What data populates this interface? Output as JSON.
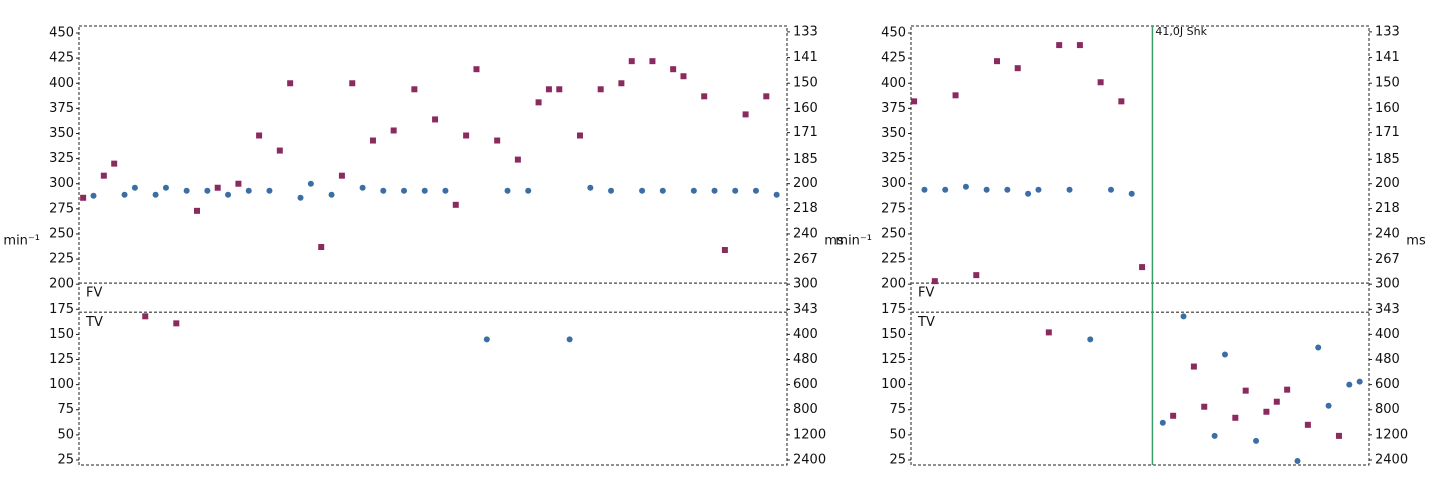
{
  "chart_data": [
    {
      "type": "scatter",
      "ylabel": "min⁻¹",
      "y2label": "ms",
      "y2scale": "reciprocal",
      "xlim": [
        -0.4,
        68.0
      ],
      "ylim": [
        20,
        457
      ],
      "y2lim": [
        131.3,
        3000
      ],
      "yticks": [
        25,
        50,
        75,
        100,
        125,
        150,
        175,
        200,
        225,
        250,
        275,
        300,
        325,
        350,
        375,
        400,
        425,
        450
      ],
      "y2ticks": [
        2400,
        1200,
        800,
        600,
        480,
        400,
        343,
        300,
        267,
        240,
        218,
        200,
        185,
        171,
        160,
        150,
        141,
        133
      ],
      "thresholds": [
        {
          "label": "FV",
          "value": 201
        },
        {
          "label": "TV",
          "value": 172
        }
      ],
      "series": [
        {
          "color": "#8b2a5e",
          "marker": "square",
          "x": [
            0,
            2,
            3,
            6,
            9,
            11,
            13,
            15,
            17,
            19,
            20,
            23,
            25,
            26,
            28,
            30,
            32,
            34,
            36,
            37,
            38,
            40,
            42,
            44,
            45,
            46,
            48,
            50,
            52,
            53,
            55,
            57,
            58,
            60,
            62,
            64,
            66
          ],
          "values": [
            286,
            308,
            320,
            168,
            161,
            273,
            296,
            300,
            348,
            333,
            400,
            237,
            308,
            400,
            343,
            353,
            394,
            364,
            279,
            348,
            414,
            343,
            324,
            381,
            394,
            394,
            348,
            394,
            400,
            422,
            422,
            414,
            407,
            387,
            234,
            369,
            387
          ]
        },
        {
          "color": "#3a6ea5",
          "marker": "circle",
          "x": [
            1,
            4,
            5,
            7,
            8,
            10,
            12,
            14,
            16,
            18,
            21,
            22,
            24,
            27,
            29,
            31,
            33,
            35,
            39,
            41,
            43,
            47,
            49,
            51,
            54,
            56,
            59,
            61,
            63,
            65,
            67
          ],
          "values": [
            288,
            289,
            296,
            289,
            296,
            293,
            293,
            289,
            293,
            293,
            286,
            300,
            289,
            296,
            293,
            293,
            293,
            293,
            145,
            293,
            293,
            145,
            296,
            293,
            293,
            293,
            293,
            293,
            293,
            293,
            289
          ]
        }
      ]
    },
    {
      "type": "scatter",
      "ylabel": "min⁻¹",
      "y2label": "ms",
      "y2scale": "reciprocal",
      "xlim": [
        -0.3,
        43.9
      ],
      "ylim": [
        20,
        457
      ],
      "y2lim": [
        131.3,
        3000
      ],
      "yticks": [
        25,
        50,
        75,
        100,
        125,
        150,
        175,
        200,
        225,
        250,
        275,
        300,
        325,
        350,
        375,
        400,
        425,
        450
      ],
      "y2ticks": [
        2400,
        1200,
        800,
        600,
        480,
        400,
        343,
        300,
        267,
        240,
        218,
        200,
        185,
        171,
        160,
        150,
        141,
        133
      ],
      "thresholds": [
        {
          "label": "FV",
          "value": 201
        },
        {
          "label": "TV",
          "value": 172
        }
      ],
      "annotations": [
        {
          "text": "41,0J Shk",
          "x": 23,
          "color": "#3a9a6a"
        }
      ],
      "series": [
        {
          "color": "#8b2a5e",
          "marker": "square",
          "x": [
            0,
            2,
            4,
            6,
            8,
            10,
            13,
            14,
            16,
            18,
            20,
            22,
            25,
            27,
            28,
            31,
            32,
            34,
            35,
            36,
            38,
            41
          ],
          "values": [
            382,
            203,
            388,
            209,
            422,
            415,
            152,
            438,
            438,
            401,
            382,
            217,
            69,
            118,
            78,
            67,
            94,
            73,
            83,
            95,
            60,
            49
          ]
        },
        {
          "color": "#3a6ea5",
          "marker": "circle",
          "x": [
            1,
            3,
            5,
            7,
            9,
            11,
            12,
            15,
            17,
            19,
            21,
            24,
            26,
            29,
            30,
            33,
            37,
            39,
            40,
            42,
            43
          ],
          "values": [
            294,
            294,
            297,
            294,
            294,
            290,
            294,
            294,
            145,
            294,
            290,
            62,
            168,
            49,
            130,
            44,
            24,
            137,
            79,
            100,
            103
          ]
        }
      ]
    }
  ]
}
